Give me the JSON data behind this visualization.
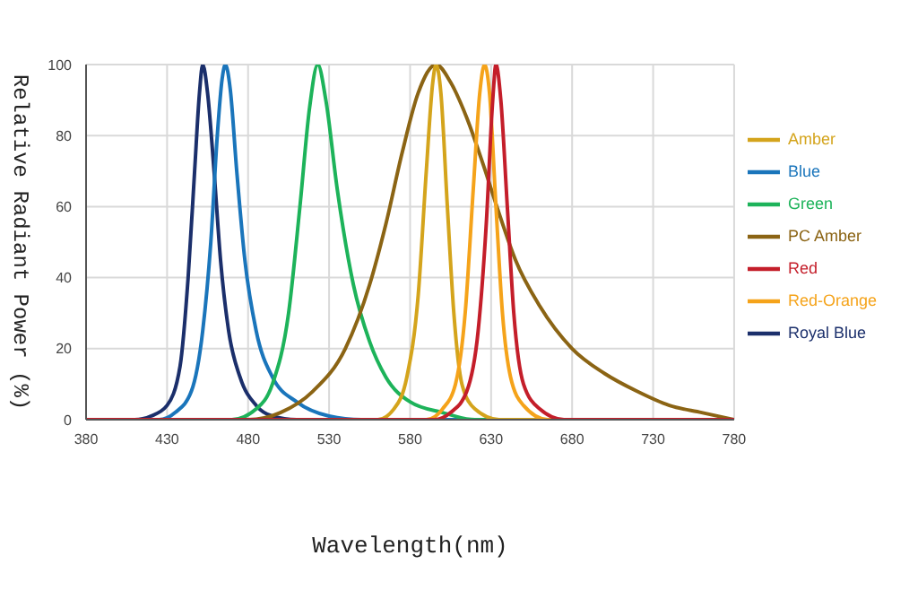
{
  "chart_data": {
    "type": "line",
    "xlabel": "Wavelength(nm)",
    "ylabel": "Relative Radiant Power (%)",
    "xlim": [
      380,
      780
    ],
    "xticks": [
      380,
      430,
      480,
      530,
      580,
      630,
      680,
      730,
      780
    ],
    "ylim": [
      0,
      100
    ],
    "yticks": [
      0,
      20,
      40,
      60,
      80,
      100
    ],
    "grid": true,
    "legend": "right",
    "marker": "none",
    "line_style": "solid",
    "series": [
      {
        "name": "Royal Blue",
        "color": "#1b2f6b",
        "x": [
          380,
          410,
          420,
          430,
          438,
          443,
          447,
          450,
          452,
          455,
          459,
          463,
          468,
          475,
          485,
          495,
          510,
          780
        ],
        "values": [
          0,
          0,
          1,
          4,
          15,
          40,
          70,
          92,
          100,
          92,
          70,
          45,
          25,
          12,
          4,
          1,
          0,
          0
        ]
      },
      {
        "name": "Blue",
        "color": "#1a75bb",
        "x": [
          380,
          425,
          435,
          445,
          452,
          457,
          461,
          464,
          466,
          469,
          473,
          478,
          485,
          495,
          510,
          530,
          550,
          780
        ],
        "values": [
          0,
          0,
          2,
          8,
          25,
          50,
          80,
          96,
          100,
          93,
          70,
          45,
          25,
          12,
          5,
          1,
          0,
          0
        ]
      },
      {
        "name": "Green",
        "color": "#1db35a",
        "x": [
          380,
          470,
          485,
          495,
          505,
          512,
          518,
          523,
          528,
          535,
          545,
          555,
          565,
          580,
          600,
          620,
          780
        ],
        "values": [
          0,
          0,
          3,
          10,
          30,
          60,
          88,
          100,
          90,
          65,
          38,
          22,
          12,
          5,
          2,
          0,
          0
        ]
      },
      {
        "name": "PC Amber",
        "color": "#8b6414",
        "x": [
          380,
          480,
          500,
          520,
          540,
          555,
          565,
          575,
          585,
          596,
          605,
          615,
          625,
          635,
          645,
          660,
          680,
          700,
          720,
          740,
          760,
          780
        ],
        "values": [
          0,
          0,
          2,
          8,
          20,
          38,
          55,
          75,
          92,
          100,
          95,
          85,
          72,
          58,
          45,
          32,
          20,
          13,
          8,
          4,
          2,
          0
        ]
      },
      {
        "name": "Amber",
        "color": "#d4a41c",
        "x": [
          380,
          560,
          570,
          578,
          585,
          590,
          594,
          596,
          599,
          603,
          607,
          612,
          620,
          635,
          780
        ],
        "values": [
          0,
          0,
          3,
          12,
          35,
          70,
          95,
          100,
          92,
          60,
          30,
          10,
          3,
          0,
          0
        ]
      },
      {
        "name": "Red-Orange",
        "color": "#f5a31a",
        "x": [
          380,
          590,
          600,
          608,
          614,
          619,
          623,
          626,
          629,
          633,
          637,
          642,
          650,
          665,
          780
        ],
        "values": [
          0,
          0,
          3,
          10,
          30,
          65,
          92,
          100,
          92,
          60,
          30,
          12,
          4,
          0,
          0
        ]
      },
      {
        "name": "Red",
        "color": "#c41e2a",
        "x": [
          380,
          595,
          605,
          615,
          622,
          627,
          631,
          633,
          636,
          640,
          644,
          650,
          660,
          675,
          780
        ],
        "values": [
          0,
          0,
          2,
          8,
          25,
          55,
          90,
          100,
          90,
          60,
          30,
          10,
          3,
          0,
          0
        ]
      }
    ]
  }
}
